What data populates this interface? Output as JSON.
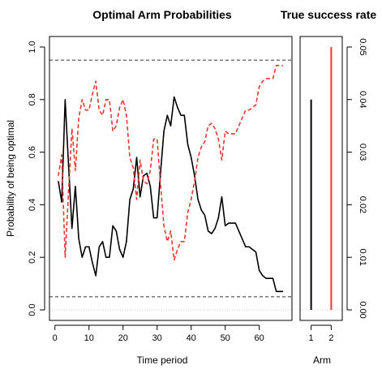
{
  "chart_data": [
    {
      "type": "line",
      "title": "Optimal Arm Probabilities",
      "xlabel": "Time period",
      "ylabel": "Probability of being optimal",
      "xlim": [
        -1.6,
        69.6
      ],
      "ylim": [
        -0.04,
        1.04
      ],
      "xticks": [
        0,
        10,
        20,
        30,
        40,
        50,
        60
      ],
      "xtick_labels": [
        "0",
        "10",
        "20",
        "30",
        "40",
        "50",
        "60"
      ],
      "yticks": [
        0.0,
        0.2,
        0.4,
        0.6,
        0.8,
        1.0
      ],
      "ytick_labels": [
        "0.0",
        "0.2",
        "0.4",
        "0.6",
        "0.8",
        "1.0"
      ],
      "reference_lines": [
        0.95,
        0.05,
        0.0
      ],
      "grid": false,
      "legend": "none",
      "series": [
        {
          "color": "#000000",
          "style": "solid",
          "x": [
            1,
            2,
            3,
            4,
            5,
            6,
            7,
            8,
            9,
            10,
            11,
            12,
            13,
            14,
            15,
            16,
            17,
            18,
            19,
            20,
            21,
            22,
            23,
            24,
            25,
            26,
            27,
            28,
            29,
            30,
            31,
            32,
            33,
            34,
            35,
            36,
            37,
            38,
            39,
            40,
            41,
            42,
            43,
            44,
            45,
            46,
            47,
            48,
            49,
            50,
            51,
            52,
            53,
            54,
            55,
            56,
            57,
            58,
            59,
            60,
            61,
            62,
            63,
            64,
            65,
            66,
            67
          ],
          "values": [
            0.49,
            0.41,
            0.8,
            0.55,
            0.31,
            0.47,
            0.27,
            0.2,
            0.24,
            0.24,
            0.18,
            0.13,
            0.24,
            0.26,
            0.2,
            0.2,
            0.32,
            0.3,
            0.23,
            0.2,
            0.26,
            0.42,
            0.46,
            0.58,
            0.43,
            0.51,
            0.52,
            0.47,
            0.35,
            0.35,
            0.52,
            0.68,
            0.74,
            0.7,
            0.81,
            0.77,
            0.74,
            0.74,
            0.63,
            0.58,
            0.51,
            0.42,
            0.38,
            0.36,
            0.3,
            0.29,
            0.31,
            0.35,
            0.43,
            0.32,
            0.33,
            0.33,
            0.33,
            0.3,
            0.27,
            0.24,
            0.24,
            0.23,
            0.22,
            0.15,
            0.13,
            0.12,
            0.12,
            0.12,
            0.07,
            0.07,
            0.07
          ]
        },
        {
          "color": "#e8382f",
          "style": "dashed",
          "x": [
            1,
            2,
            3,
            4,
            5,
            6,
            7,
            8,
            9,
            10,
            11,
            12,
            13,
            14,
            15,
            16,
            17,
            18,
            19,
            20,
            21,
            22,
            23,
            24,
            25,
            26,
            27,
            28,
            29,
            30,
            31,
            32,
            33,
            34,
            35,
            36,
            37,
            38,
            39,
            40,
            41,
            42,
            43,
            44,
            45,
            46,
            47,
            48,
            49,
            50,
            51,
            52,
            53,
            54,
            55,
            56,
            57,
            58,
            59,
            60,
            61,
            62,
            63,
            64,
            65,
            66,
            67
          ],
          "values": [
            0.51,
            0.59,
            0.2,
            0.45,
            0.69,
            0.53,
            0.73,
            0.8,
            0.76,
            0.76,
            0.82,
            0.87,
            0.76,
            0.74,
            0.8,
            0.8,
            0.68,
            0.7,
            0.77,
            0.8,
            0.74,
            0.58,
            0.54,
            0.42,
            0.57,
            0.49,
            0.48,
            0.53,
            0.65,
            0.65,
            0.48,
            0.32,
            0.26,
            0.3,
            0.19,
            0.23,
            0.26,
            0.26,
            0.37,
            0.42,
            0.49,
            0.58,
            0.62,
            0.64,
            0.7,
            0.71,
            0.69,
            0.65,
            0.57,
            0.68,
            0.67,
            0.67,
            0.67,
            0.7,
            0.73,
            0.76,
            0.76,
            0.77,
            0.78,
            0.85,
            0.87,
            0.88,
            0.88,
            0.88,
            0.93,
            0.93,
            0.93
          ]
        }
      ]
    },
    {
      "type": "bar",
      "title": "True success rate",
      "xlabel": "Arm",
      "ylabel": "",
      "categories": [
        "1",
        "2"
      ],
      "values": [
        0.04,
        0.05
      ],
      "colors": [
        "#000000",
        "#e8382f"
      ],
      "ylim": [
        -0.002,
        0.052
      ],
      "yticks": [
        0.0,
        0.01,
        0.02,
        0.03,
        0.04,
        0.05
      ],
      "ytick_labels": [
        "0.00",
        "0.01",
        "0.02",
        "0.03",
        "0.04",
        "0.05"
      ],
      "yaxis_side": "right",
      "grid": false,
      "legend": "none"
    }
  ]
}
